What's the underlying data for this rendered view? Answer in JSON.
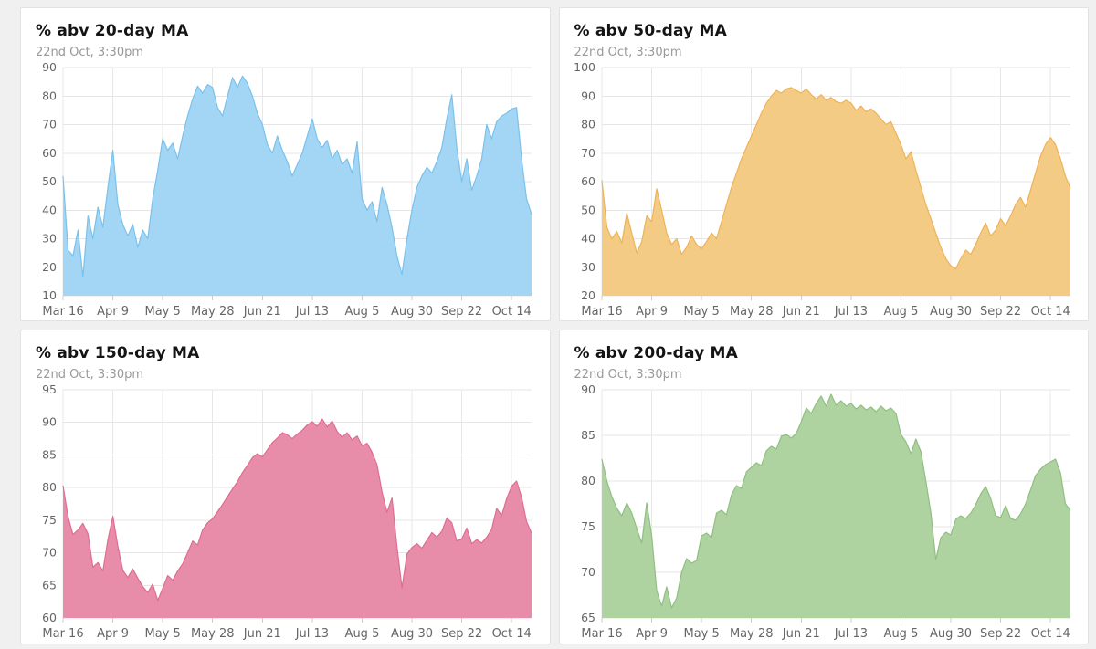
{
  "page": {
    "background": "#f0f0f0"
  },
  "chart_data": [
    {
      "type": "area",
      "title": "% abv 20-day MA",
      "subtitle": "22nd Oct, 3:30pm",
      "legend": "none",
      "grid": true,
      "x_tick_labels": [
        "Mar 16",
        "Apr 9",
        "May 5",
        "May 28",
        "Jun 21",
        "Jul 13",
        "Aug 5",
        "Aug 30",
        "Sep 22",
        "Oct 14"
      ],
      "ylim": [
        10,
        90
      ],
      "ystep": 10,
      "fill": "#a2d6f4",
      "line": "#7bc1ea",
      "values": [
        52,
        26,
        24,
        33,
        16.5,
        38,
        30,
        41,
        34,
        48,
        61,
        42,
        35,
        31,
        35,
        27,
        33,
        30,
        44,
        54,
        65,
        61,
        63.5,
        58,
        66,
        73,
        79,
        83.5,
        81,
        84,
        83,
        76,
        73,
        80,
        86.5,
        83,
        87,
        84.5,
        80,
        74,
        70,
        63,
        60,
        66,
        61,
        57,
        52,
        56,
        60,
        66,
        72,
        65,
        62,
        64.5,
        58,
        61,
        56,
        58,
        53,
        64,
        44,
        40,
        43,
        36,
        48,
        42,
        34,
        24,
        17.5,
        30,
        40,
        48,
        52,
        55,
        53,
        57,
        62,
        72,
        80.5,
        62,
        50,
        58,
        47,
        52,
        58,
        70,
        65,
        71,
        73,
        74,
        75.5,
        76,
        58,
        44,
        38.5
      ]
    },
    {
      "type": "area",
      "title": "% abv 50-day MA",
      "subtitle": "22nd Oct, 3:30pm",
      "legend": "none",
      "grid": true,
      "x_tick_labels": [
        "Mar 16",
        "Apr 9",
        "May 5",
        "May 28",
        "Jun 21",
        "Jul 13",
        "Aug 5",
        "Aug 30",
        "Sep 22",
        "Oct 14"
      ],
      "ylim": [
        20,
        100
      ],
      "ystep": 10,
      "fill": "#f4cb85",
      "line": "#edb357",
      "values": [
        60.5,
        44,
        40,
        42.5,
        38.5,
        49,
        42,
        35,
        39,
        48,
        46,
        57.5,
        50,
        42,
        38,
        40,
        34.5,
        37,
        41,
        38,
        36.5,
        39,
        42,
        40,
        46,
        52,
        58,
        63,
        68,
        72,
        76,
        80,
        84,
        87.5,
        90,
        92,
        91,
        92.5,
        93,
        92,
        91,
        92.5,
        90.5,
        89,
        90.5,
        88.5,
        89.5,
        88,
        87.5,
        88.5,
        87.5,
        85,
        86.5,
        84.5,
        85.5,
        84,
        82,
        80,
        81,
        77,
        73,
        68,
        70.5,
        64,
        58,
        52,
        47,
        42,
        37,
        33,
        30.5,
        29.5,
        33,
        36,
        34.5,
        38,
        42,
        45.5,
        41,
        43,
        47,
        44.5,
        48,
        52,
        54.5,
        51,
        57,
        63,
        69,
        73,
        75.5,
        73,
        68,
        62,
        57.5
      ]
    },
    {
      "type": "area",
      "title": "% abv 150-day MA",
      "subtitle": "22nd Oct, 3:30pm",
      "legend": "none",
      "grid": true,
      "x_tick_labels": [
        "Mar 16",
        "Apr 9",
        "May 5",
        "May 28",
        "Jun 21",
        "Jul 13",
        "Aug 5",
        "Aug 30",
        "Sep 22",
        "Oct 14"
      ],
      "ylim": [
        60,
        95
      ],
      "ystep": 5,
      "fill": "#e88da9",
      "line": "#df6c92",
      "values": [
        80.3,
        75.5,
        72.8,
        73.5,
        74.5,
        72.9,
        67.8,
        68.5,
        67.2,
        72,
        75.6,
        71,
        67.3,
        66.2,
        67.5,
        66.1,
        64.8,
        63.9,
        65.2,
        62.7,
        64.5,
        66.5,
        65.8,
        67.2,
        68.3,
        70,
        71.8,
        71.2,
        73.5,
        74.6,
        75.2,
        76.3,
        77.4,
        78.6,
        79.8,
        80.9,
        82.3,
        83.4,
        84.6,
        85.2,
        84.7,
        85.8,
        86.9,
        87.6,
        88.4,
        88.1,
        87.5,
        88.2,
        88.8,
        89.6,
        90.1,
        89.4,
        90.5,
        89.3,
        90.2,
        88.6,
        87.7,
        88.4,
        87.3,
        87.9,
        86.4,
        86.8,
        85.4,
        83.5,
        79.3,
        76.2,
        78.4,
        71,
        64.6,
        69.8,
        70.8,
        71.4,
        70.7,
        71.9,
        73.1,
        72.4,
        73.3,
        75.3,
        74.6,
        71.8,
        72.1,
        73.8,
        71.4,
        72,
        71.5,
        72.4,
        73.6,
        76.8,
        75.7,
        78.3,
        80.2,
        81,
        78.5,
        74.8,
        73
      ]
    },
    {
      "type": "area",
      "title": "% abv 200-day MA",
      "subtitle": "22nd Oct, 3:30pm",
      "legend": "none",
      "grid": true,
      "x_tick_labels": [
        "Mar 16",
        "Apr 9",
        "May 5",
        "May 28",
        "Jun 21",
        "Jul 13",
        "Aug 5",
        "Aug 30",
        "Sep 22",
        "Oct 14"
      ],
      "ylim": [
        65,
        90
      ],
      "ystep": 5,
      "fill": "#afd3a0",
      "line": "#8fbf81",
      "values": [
        82.4,
        80,
        78.3,
        77,
        76.2,
        77.6,
        76.5,
        74.8,
        73.2,
        77.6,
        74,
        68,
        66.3,
        68.4,
        66.1,
        67.2,
        70,
        71.5,
        71,
        71.3,
        74,
        74.3,
        73.8,
        76.5,
        76.8,
        76.3,
        78.5,
        79.5,
        79.2,
        81,
        81.5,
        82,
        81.7,
        83.3,
        83.8,
        83.5,
        84.9,
        85.1,
        84.7,
        85.2,
        86.5,
        88,
        87.4,
        88.5,
        89.3,
        88.2,
        89.5,
        88.3,
        88.8,
        88.2,
        88.5,
        87.9,
        88.3,
        87.8,
        88.1,
        87.6,
        88.2,
        87.7,
        88,
        87.4,
        85.1,
        84.3,
        83,
        84.6,
        83.2,
        80,
        76.5,
        71.4,
        73.8,
        74.4,
        74.1,
        75.8,
        76.2,
        75.9,
        76.5,
        77.4,
        78.6,
        79.4,
        78.1,
        76.2,
        76,
        77.3,
        75.9,
        75.7,
        76.4,
        77.5,
        79,
        80.6,
        81.3,
        81.8,
        82.1,
        82.4,
        80.9,
        77.5,
        76.8
      ]
    }
  ]
}
